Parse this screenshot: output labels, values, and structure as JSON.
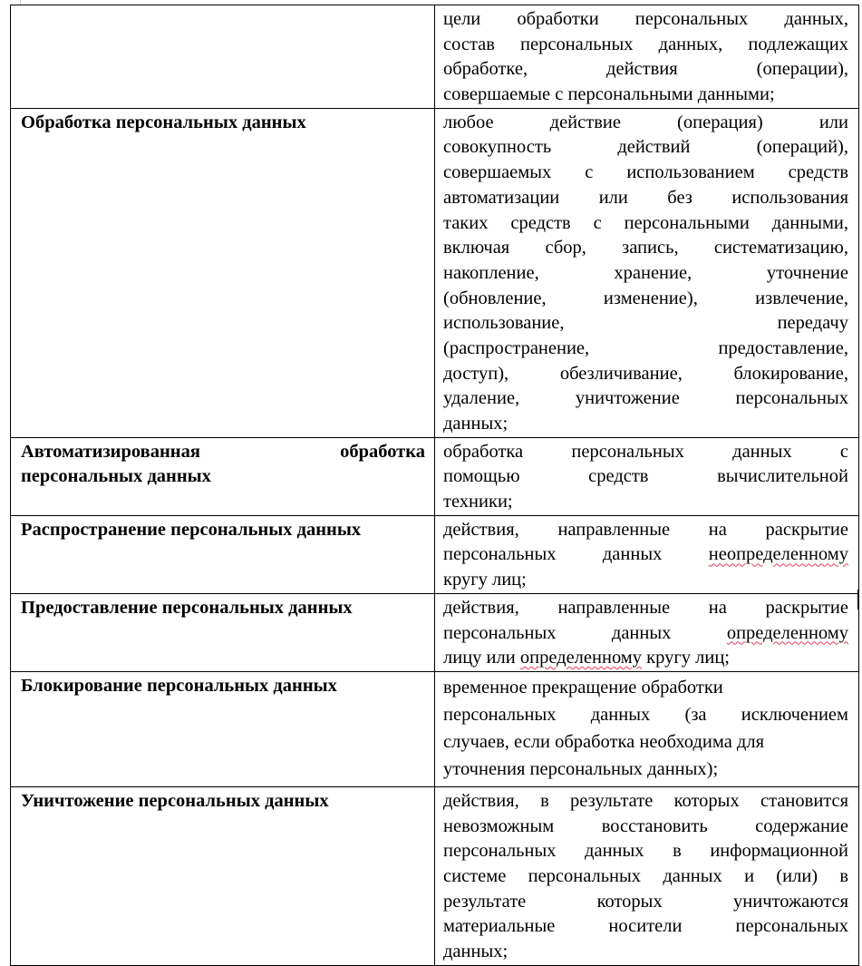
{
  "rows": [
    {
      "term": [],
      "definition": [
        "цели обработки персональных данных,",
        "состав персональных данных, подлежащих",
        "обработке, действия (операции),",
        "совершаемые с персональными данными;"
      ]
    },
    {
      "term": [
        "Обработка персональных данных"
      ],
      "definition": [
        "любое действие (операция) или",
        "совокупность действий (операций),",
        "совершаемых с использованием средств",
        "автоматизации или без использования",
        "таких средств с персональными данными,",
        "включая сбор, запись, систематизацию,",
        "накопление, хранение, уточнение",
        "(обновление, изменение), извлечение,",
        "использование, передачу",
        "(распространение, предоставление,",
        "доступ), обезличивание, блокирование,",
        "удаление, уничтожение персональных",
        "данных;"
      ]
    },
    {
      "term": [
        "Автоматизированная обработка",
        "персональных данных"
      ],
      "definition": [
        "обработка персональных данных с",
        "помощью средств вычислительной",
        "техники;"
      ]
    },
    {
      "term": [
        "Распространение персональных данных"
      ],
      "definition": [
        "действия, направленные на раскрытие",
        "персональных данных неопределенному",
        "кругу лиц;"
      ]
    },
    {
      "term": [
        "Предоставление персональных данных"
      ],
      "definition": [
        "действия, направленные на раскрытие",
        "персональных данных определенному",
        "лицу или определенному кругу лиц;"
      ]
    },
    {
      "term": [
        "Блокирование персональных данных"
      ],
      "definition": [
        "временное прекращение обработки",
        "персональных данных (за исключением",
        "случаев, если обработка необходима для",
        "уточнения персональных данных);"
      ]
    },
    {
      "term": [
        "Уничтожение персональных данных"
      ],
      "definition": [
        "действия, в результате которых становится",
        "невозможным восстановить содержание",
        "персональных данных в информационной",
        "системе персональных данных и (или) в",
        "результате которых уничтожаются",
        "материальные носители персональных",
        "данных;"
      ]
    }
  ],
  "spellcheck_flagged_words": [
    "неопределенному",
    "определенному"
  ],
  "spellcheck_color": "#e8375f"
}
